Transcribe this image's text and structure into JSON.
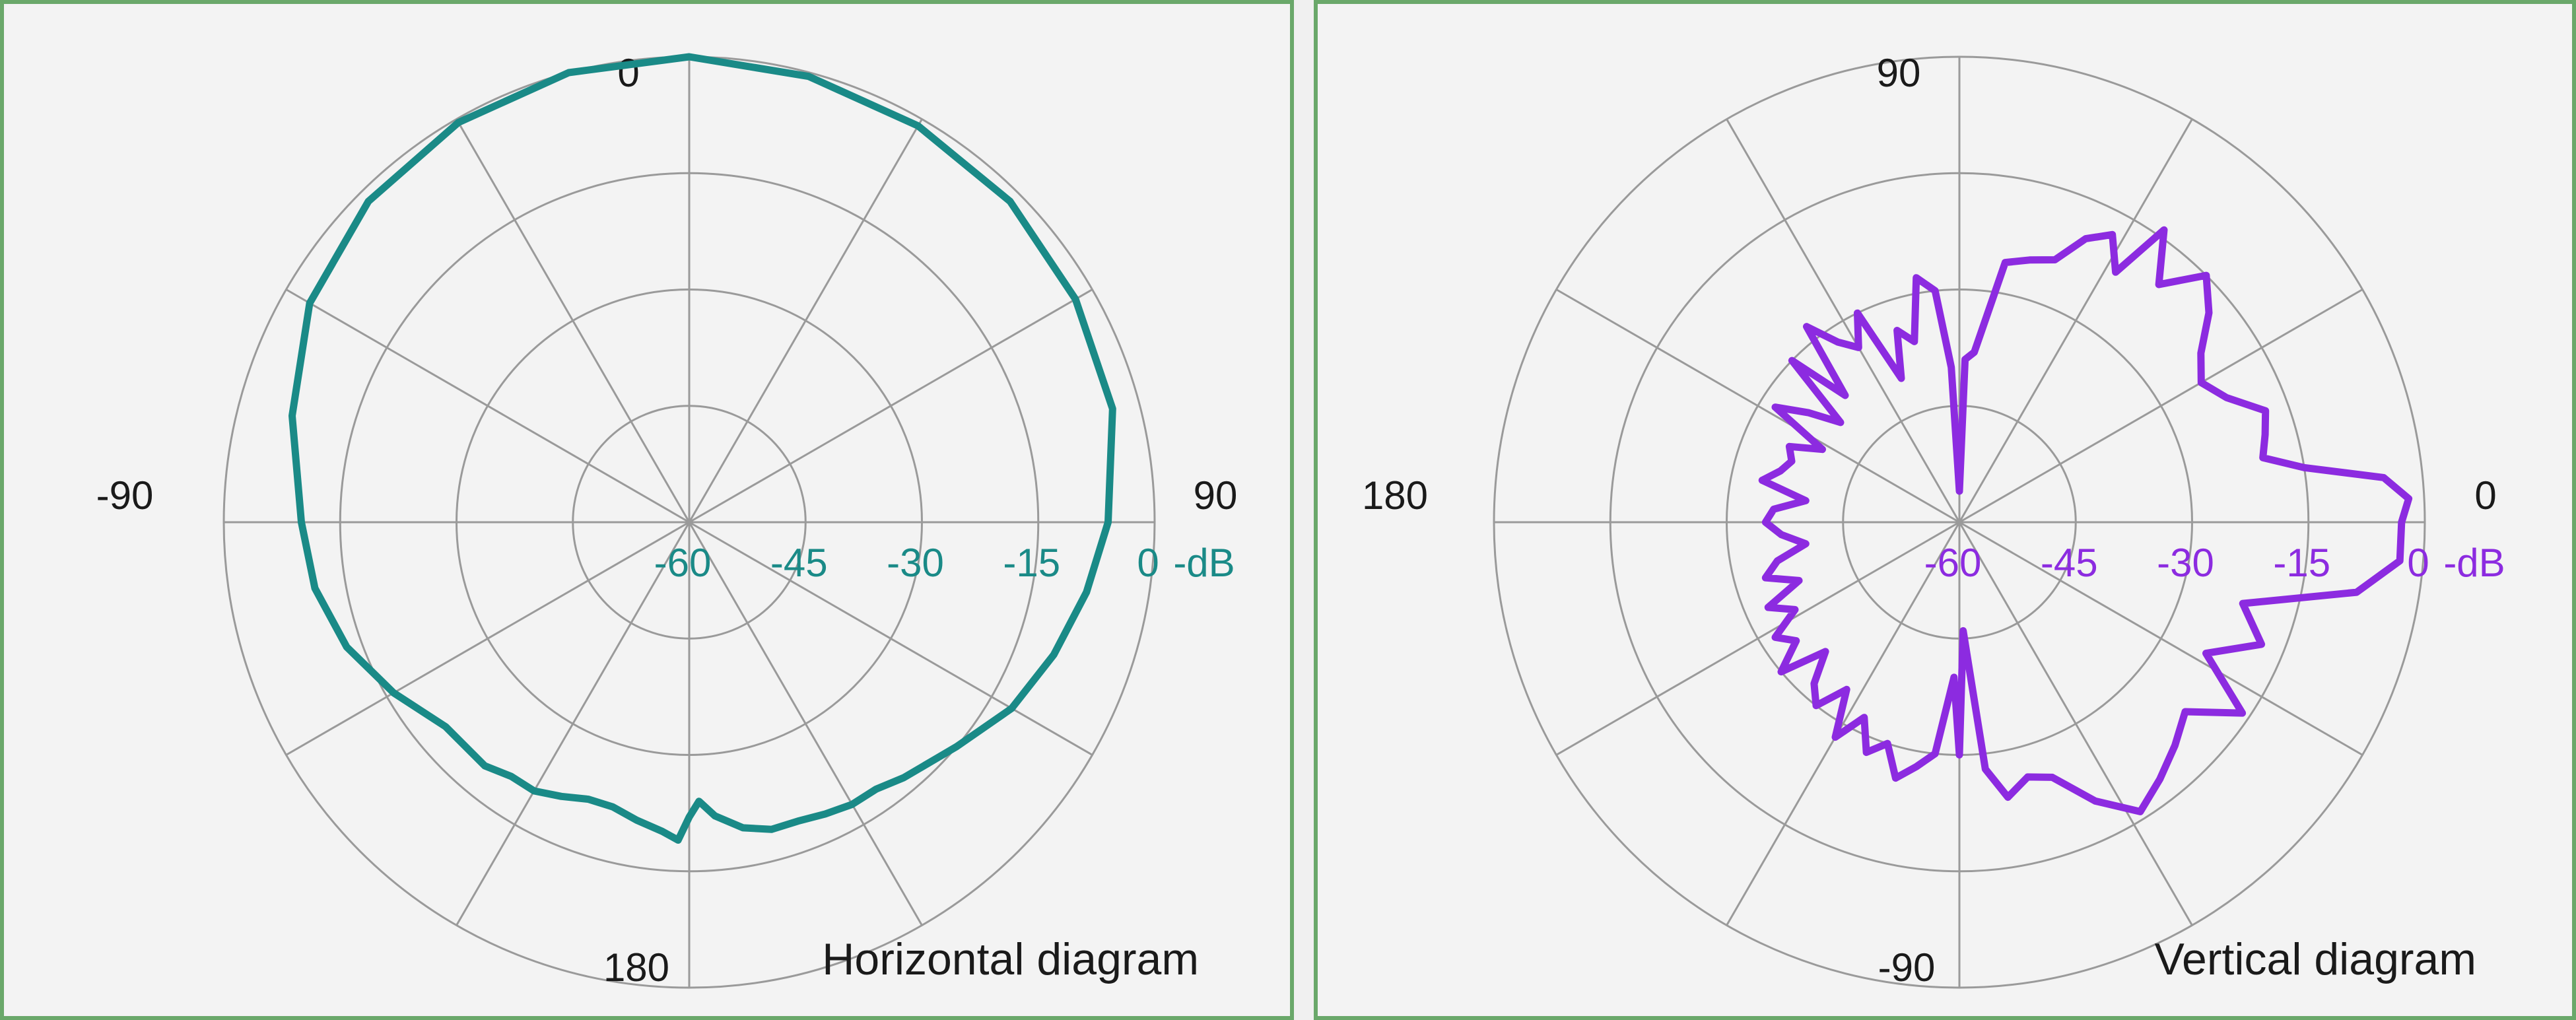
{
  "chart_data": [
    {
      "type": "polar",
      "title": "Horizontal diagram",
      "unit_label": "-dB",
      "radial_ticks": [
        "-60",
        "-45",
        "-30",
        "-15",
        "0"
      ],
      "radial_range": [
        -60,
        0
      ],
      "angle_labels": {
        "top": "0",
        "right": "90",
        "bottom": "180",
        "left": "-90"
      },
      "grid": true,
      "color": "#1a8a87",
      "series": [
        {
          "angle_deg": [
            0,
            15,
            30,
            45,
            60,
            75,
            90,
            100,
            110,
            120,
            130,
            140,
            145,
            150,
            155,
            160,
            165,
            170,
            175,
            178,
            180,
            182,
            185,
            190,
            195,
            200,
            205,
            210,
            215,
            220,
            230,
            240,
            250,
            260,
            270,
            285,
            300,
            315,
            330,
            345
          ],
          "level_db": [
            0,
            -0.5,
            -1,
            -1.5,
            -2.5,
            -3.5,
            -6,
            -8,
            -10,
            -12,
            -15,
            -17,
            -18,
            -18,
            -18.5,
            -19,
            -19,
            -20,
            -22,
            -24,
            -22,
            -19,
            -20,
            -21,
            -22,
            -22,
            -21,
            -20,
            -20,
            -19,
            -19,
            -16,
            -13,
            -11,
            -10,
            -7,
            -3.5,
            -1.5,
            -0.5,
            0
          ]
        }
      ]
    },
    {
      "type": "polar",
      "title": "Vertical diagram",
      "unit_label": "-dB",
      "radial_ticks": [
        "-60",
        "-45",
        "-30",
        "-15",
        "0"
      ],
      "radial_range": [
        -60,
        0
      ],
      "angle_labels": {
        "top": "90",
        "right": "0",
        "bottom": "-90",
        "left": "180"
      },
      "grid": true,
      "color": "#8c2be0",
      "series": [
        {
          "angle_deg": [
            0,
            3,
            6,
            9,
            12,
            16,
            20,
            25,
            30,
            35,
            40,
            45,
            50,
            55,
            58,
            62,
            66,
            70,
            75,
            80,
            85,
            88,
            90,
            93,
            96,
            100,
            104,
            108,
            112,
            116,
            120,
            124,
            128,
            132,
            136,
            140,
            144,
            148,
            152,
            156,
            160,
            164,
            168,
            172,
            176,
            180,
            184,
            188,
            192,
            196,
            200,
            204,
            208,
            212,
            216,
            220,
            224,
            228,
            232,
            236,
            240,
            244,
            248,
            252,
            256,
            260,
            264,
            268,
            270,
            272,
            276,
            280,
            285,
            290,
            296,
            302,
            308,
            314,
            320,
            326,
            332,
            338,
            344,
            350,
            355
          ],
          "level_db": [
            -3,
            -2,
            -5,
            -15,
            -20,
            -19,
            -18,
            -22,
            -24,
            -22,
            -18,
            -15,
            -20,
            -14,
            -22,
            -18,
            -20,
            -24,
            -25,
            -26,
            -38,
            -39,
            -56,
            -40,
            -30,
            -28,
            -36,
            -34,
            -40,
            -30,
            -34,
            -32,
            -28,
            -38,
            -30,
            -40,
            -36,
            -32,
            -40,
            -36,
            -37,
            -36,
            -34,
            -40,
            -36,
            -35,
            -37,
            -40,
            -36,
            -34,
            -38,
            -33,
            -36,
            -32,
            -34,
            -30,
            -36,
            -32,
            -30,
            -34,
            -28,
            -32,
            -28,
            -30,
            -26,
            -28,
            -30,
            -40,
            -30,
            -46,
            -28,
            -24,
            -26,
            -25,
            -20,
            -16,
            -18,
            -20,
            -22,
            -16,
            -24,
            -18,
            -22,
            -8,
            -3
          ]
        }
      ]
    }
  ]
}
